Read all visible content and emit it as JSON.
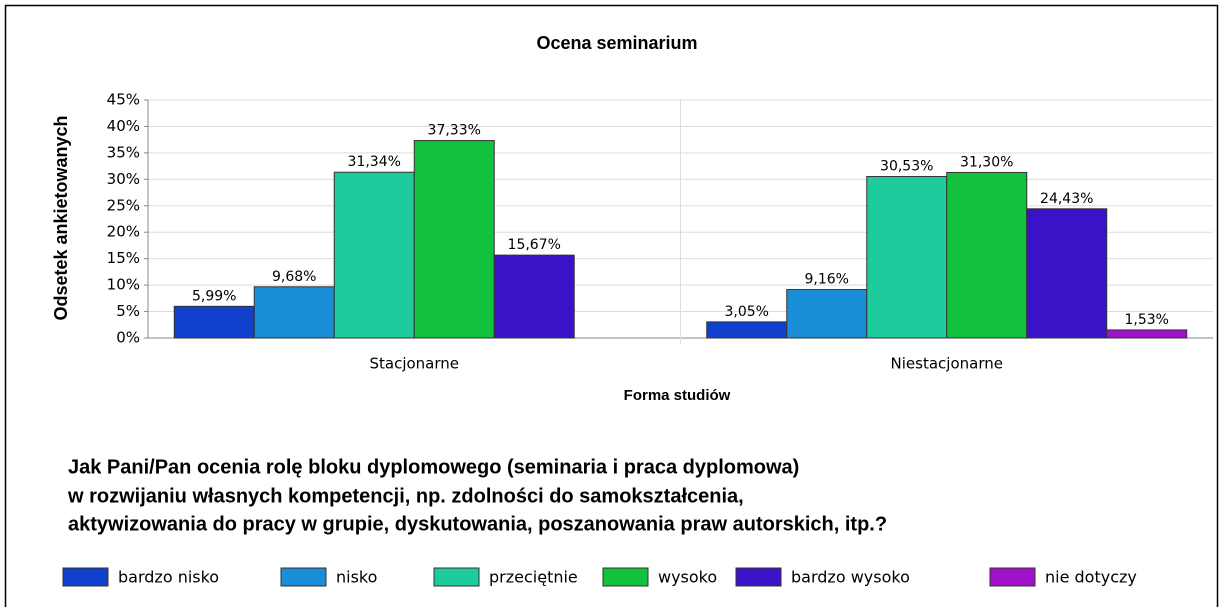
{
  "chart_data": {
    "type": "bar",
    "title": "Ocena seminarium",
    "x_label": "Forma studiów",
    "y_label": "Odsetek ankietowanych",
    "question": [
      "Jak Pani/Pan ocenia rolę bloku dyplomowego (seminaria i praca dyplomowa)",
      "w rozwijaniu własnych kompetencji, np. zdolności do samokształcenia,",
      "aktywizowania do pracy w grupie, dyskutowania, poszanowania praw autorskich, itp.?"
    ],
    "categories": [
      "Stacjonarne",
      "Niestacjonarne"
    ],
    "series": [
      {
        "name": "bardzo nisko",
        "color": "#1040cc",
        "values": [
          5.99,
          3.05
        ],
        "value_labels": [
          "5,99%",
          "3,05%"
        ]
      },
      {
        "name": "nisko",
        "color": "#1a8ed6",
        "values": [
          9.68,
          9.16
        ],
        "value_labels": [
          "9,68%",
          "9,16%"
        ]
      },
      {
        "name": "przeciętnie",
        "color": "#1ecb9c",
        "values": [
          31.34,
          30.53
        ],
        "value_labels": [
          "31,34%",
          "30,53%"
        ]
      },
      {
        "name": "wysoko",
        "color": "#12c23c",
        "values": [
          37.33,
          31.3
        ],
        "value_labels": [
          "37,33%",
          "31,30%"
        ]
      },
      {
        "name": "bardzo wysoko",
        "color": "#3a12c8",
        "values": [
          15.67,
          24.43
        ],
        "value_labels": [
          "15,67%",
          "24,43%"
        ]
      },
      {
        "name": "nie dotyczy",
        "color": "#a012c8",
        "values": [
          null,
          1.53
        ],
        "value_labels": [
          null,
          "1,53%"
        ]
      }
    ],
    "ylim": [
      0,
      45
    ],
    "yticks": [
      {
        "value": 0,
        "label": "0%"
      },
      {
        "value": 5,
        "label": "5%"
      },
      {
        "value": 10,
        "label": "10%"
      },
      {
        "value": 15,
        "label": "15%"
      },
      {
        "value": 20,
        "label": "20%"
      },
      {
        "value": 25,
        "label": "25%"
      },
      {
        "value": 30,
        "label": "30%"
      },
      {
        "value": 35,
        "label": "35%"
      },
      {
        "value": 40,
        "label": "40%"
      },
      {
        "value": 45,
        "label": "45%"
      }
    ],
    "grid": true
  }
}
